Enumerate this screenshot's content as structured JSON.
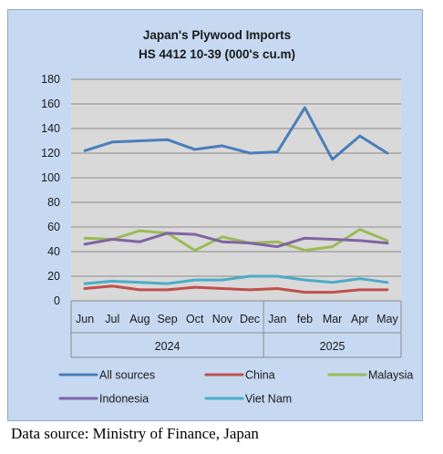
{
  "chart_data": {
    "type": "line",
    "title": "Japan's Plywood Imports",
    "subtitle": "HS 4412 10-39  (000's cu.m)",
    "categories": [
      "Jun",
      "Jul",
      "Aug",
      "Sep",
      "Oct",
      "Nov",
      "Dec",
      "Jan",
      "feb",
      "Mar",
      "Apr",
      "May"
    ],
    "year_groups": [
      {
        "label": "2024",
        "count": 7
      },
      {
        "label": "2025",
        "count": 5
      }
    ],
    "ylim": [
      0,
      180
    ],
    "yticks": [
      0,
      20,
      40,
      60,
      80,
      100,
      120,
      140,
      160,
      180
    ],
    "grid": true,
    "legend_position": "bottom",
    "series": [
      {
        "name": "All sources",
        "color": "#4a7ebb",
        "values": [
          122,
          129,
          130,
          131,
          123,
          126,
          120,
          121,
          157,
          115,
          134,
          120
        ]
      },
      {
        "name": "China",
        "color": "#c0504d",
        "values": [
          10,
          12,
          9,
          9,
          11,
          10,
          9,
          10,
          7,
          7,
          9,
          9
        ]
      },
      {
        "name": "Malaysia",
        "color": "#9bbb59",
        "values": [
          51,
          50,
          57,
          55,
          41,
          52,
          47,
          48,
          41,
          44,
          58,
          49
        ]
      },
      {
        "name": "Indonesia",
        "color": "#8064a2",
        "values": [
          46,
          50,
          48,
          55,
          54,
          48,
          47,
          44,
          51,
          50,
          49,
          47
        ]
      },
      {
        "name": "Viet Nam",
        "color": "#4bacc6",
        "values": [
          14,
          16,
          15,
          14,
          17,
          17,
          20,
          20,
          17,
          15,
          18,
          15
        ]
      }
    ]
  },
  "source_note": "Data source: Ministry of Finance, Japan"
}
